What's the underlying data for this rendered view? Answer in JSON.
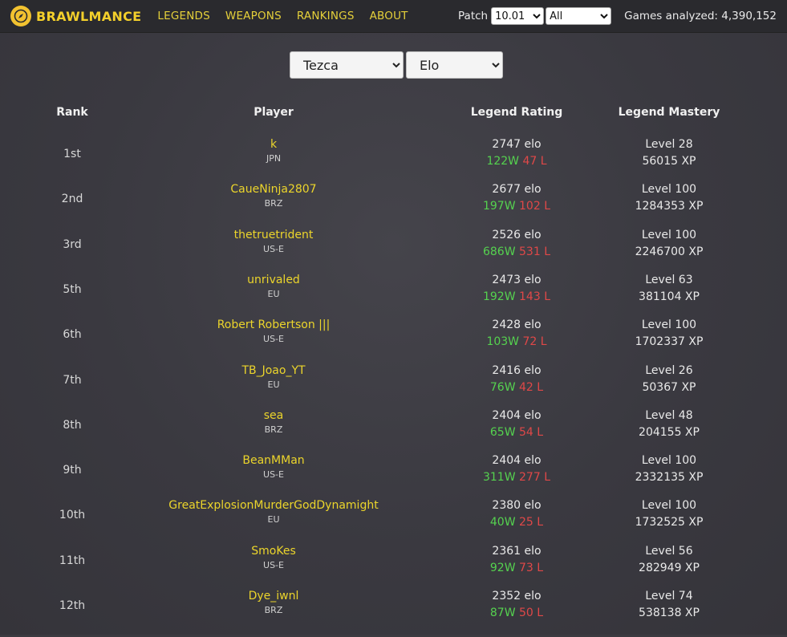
{
  "nav": {
    "brand": "BRAWLMANCE",
    "links": [
      "LEGENDS",
      "WEAPONS",
      "RANKINGS",
      "ABOUT"
    ],
    "patch_label": "Patch",
    "patch_value": "10.01",
    "region_value": "All",
    "games_label": "Games analyzed:",
    "games_value": "4,390,152"
  },
  "filters": {
    "legend": "Tezca",
    "metric": "Elo"
  },
  "table": {
    "headers": [
      "Rank",
      "Player",
      "Legend Rating",
      "Legend Mastery"
    ],
    "rows": [
      {
        "rank": "1st",
        "player": "k",
        "region": "JPN",
        "elo": "2747 elo",
        "wins": "122W",
        "losses": "47 L",
        "level": "Level 28",
        "xp": "56015 XP"
      },
      {
        "rank": "2nd",
        "player": "CaueNinja2807",
        "region": "BRZ",
        "elo": "2677 elo",
        "wins": "197W",
        "losses": "102 L",
        "level": "Level 100",
        "xp": "1284353 XP"
      },
      {
        "rank": "3rd",
        "player": "thetruetrident",
        "region": "US-E",
        "elo": "2526 elo",
        "wins": "686W",
        "losses": "531 L",
        "level": "Level 100",
        "xp": "2246700 XP"
      },
      {
        "rank": "5th",
        "player": "unrivaled",
        "region": "EU",
        "elo": "2473 elo",
        "wins": "192W",
        "losses": "143 L",
        "level": "Level 63",
        "xp": "381104 XP"
      },
      {
        "rank": "6th",
        "player": "Robert Robertson |||",
        "region": "US-E",
        "elo": "2428 elo",
        "wins": "103W",
        "losses": "72 L",
        "level": "Level 100",
        "xp": "1702337 XP"
      },
      {
        "rank": "7th",
        "player": "TB_Joao_YT",
        "region": "EU",
        "elo": "2416 elo",
        "wins": "76W",
        "losses": "42 L",
        "level": "Level 26",
        "xp": "50367 XP"
      },
      {
        "rank": "8th",
        "player": "sea",
        "region": "BRZ",
        "elo": "2404 elo",
        "wins": "65W",
        "losses": "54 L",
        "level": "Level 48",
        "xp": "204155 XP"
      },
      {
        "rank": "9th",
        "player": "BeanMMan",
        "region": "US-E",
        "elo": "2404 elo",
        "wins": "311W",
        "losses": "277 L",
        "level": "Level 100",
        "xp": "2332135 XP"
      },
      {
        "rank": "10th",
        "player": "GreatExplosionMurderGodDynamight",
        "region": "EU",
        "elo": "2380 elo",
        "wins": "40W",
        "losses": "25 L",
        "level": "Level 100",
        "xp": "1732525 XP"
      },
      {
        "rank": "11th",
        "player": "SmoKes",
        "region": "US-E",
        "elo": "2361 elo",
        "wins": "92W",
        "losses": "73 L",
        "level": "Level 56",
        "xp": "282949 XP"
      },
      {
        "rank": "12th",
        "player": "Dye_iwnl",
        "region": "BRZ",
        "elo": "2352 elo",
        "wins": "87W",
        "losses": "50 L",
        "level": "Level 74",
        "xp": "538138 XP"
      }
    ]
  },
  "colors": {
    "accent": "#ecd52b",
    "win": "#55d24f",
    "loss": "#e04848",
    "nav_bg": "#2a2a2e",
    "page_bg": "#3b3a40"
  },
  "icons": {
    "brand": "compass-icon"
  }
}
